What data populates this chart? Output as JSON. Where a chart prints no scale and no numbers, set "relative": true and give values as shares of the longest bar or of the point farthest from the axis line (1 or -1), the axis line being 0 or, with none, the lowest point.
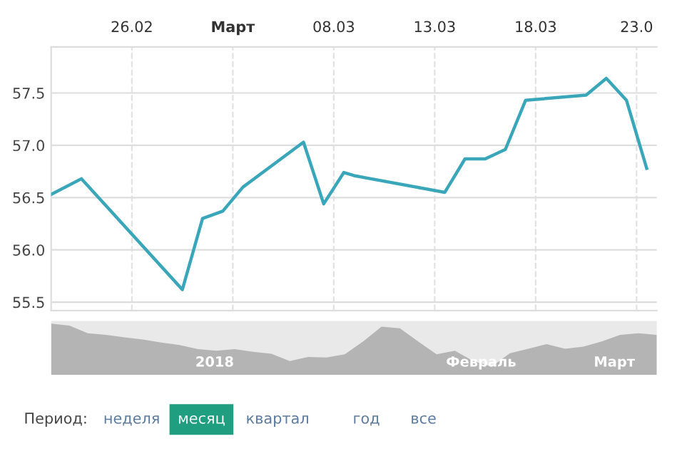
{
  "chart_data": [
    {
      "type": "line",
      "categories": [
        null,
        null,
        null,
        null,
        null,
        null,
        null,
        null,
        "26.02",
        null,
        null,
        null,
        null,
        null,
        null,
        null,
        null,
        null,
        "Март",
        null,
        null,
        null,
        null,
        null,
        null,
        null,
        null,
        null,
        "08.03",
        null,
        null,
        null,
        null,
        null,
        null,
        null,
        null,
        null,
        "13.03",
        null,
        null,
        null,
        null,
        null,
        null,
        null,
        null,
        null,
        "18.03",
        null,
        null,
        null,
        null,
        null,
        null,
        null,
        null,
        null,
        "23.0",
        null,
        null
      ],
      "series": [
        {
          "color": "#3aa6b9",
          "values": [
            56.53,
            null,
            null,
            56.68,
            null,
            null,
            null,
            null,
            null,
            null,
            null,
            null,
            null,
            55.62,
            null,
            56.3,
            null,
            56.37,
            null,
            56.6,
            null,
            null,
            null,
            null,
            null,
            57.03,
            null,
            56.44,
            null,
            56.74,
            56.71,
            null,
            null,
            null,
            null,
            null,
            null,
            null,
            null,
            56.55,
            null,
            56.87,
            null,
            56.87,
            null,
            56.96,
            null,
            57.43,
            null,
            null,
            null,
            null,
            null,
            57.48,
            null,
            57.64,
            null,
            57.43,
            null,
            56.78,
            null
          ]
        }
      ],
      "ylim": [
        55.42,
        57.94
      ],
      "yticks": [
        {
          "value": 55.5,
          "label": "55.5"
        },
        {
          "value": 56.0,
          "label": "56.0"
        },
        {
          "value": 56.5,
          "label": "56.5"
        },
        {
          "value": 57.0,
          "label": "57.0"
        },
        {
          "value": 57.5,
          "label": "57.5"
        }
      ],
      "grid": true,
      "line_style": "solid",
      "marker": "none"
    },
    {
      "type": "area",
      "relative": true,
      "categories": [
        null,
        null,
        null,
        null,
        null,
        null,
        null,
        null,
        null,
        null,
        null,
        null,
        null,
        null,
        null,
        null,
        null,
        null,
        null,
        null,
        null,
        null,
        null,
        null,
        null,
        null,
        null,
        null,
        null,
        null,
        null,
        null,
        null,
        null
      ],
      "series": [
        {
          "color": "#b4b4b4",
          "values": [
            1.0,
            0.96,
            0.81,
            0.78,
            0.73,
            0.69,
            0.63,
            0.58,
            0.5,
            0.47,
            0.5,
            0.45,
            0.41,
            0.27,
            0.35,
            0.34,
            0.4,
            0.65,
            0.94,
            0.91,
            0.65,
            0.4,
            0.47,
            0.27,
            0.16,
            0.42,
            0.51,
            0.6,
            0.51,
            0.55,
            0.65,
            0.78,
            0.81,
            0.78
          ]
        }
      ],
      "annotations": [
        "2018",
        "Февраль",
        "Март"
      ]
    },
    {
      "type": "other",
      "annotations": [
        "Период:",
        "неделя",
        "месяц",
        "квартал",
        "год",
        "все"
      ]
    }
  ]
}
